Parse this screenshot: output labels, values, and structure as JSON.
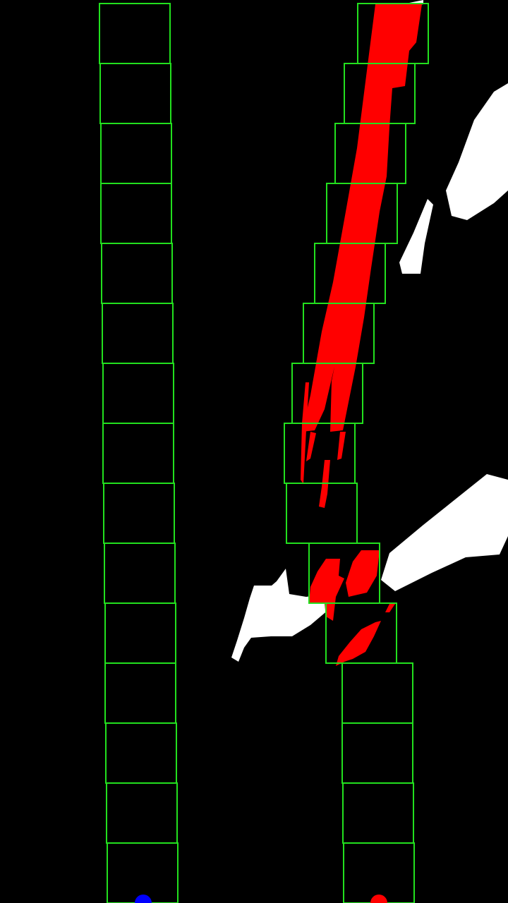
{
  "colors": {
    "background": "#000000",
    "window_stroke": "#22e01e",
    "lane_pixels": "#ff0000",
    "noise_pixels": "#ffffff",
    "left_base_marker": "#0000ff",
    "right_base_marker": "#ff0000"
  },
  "left_lane": {
    "window_count": 15
  },
  "right_lane": {
    "window_count": 15
  },
  "markers": {
    "left_base": "left-lane-base-marker",
    "right_base": "right-lane-base-marker"
  }
}
